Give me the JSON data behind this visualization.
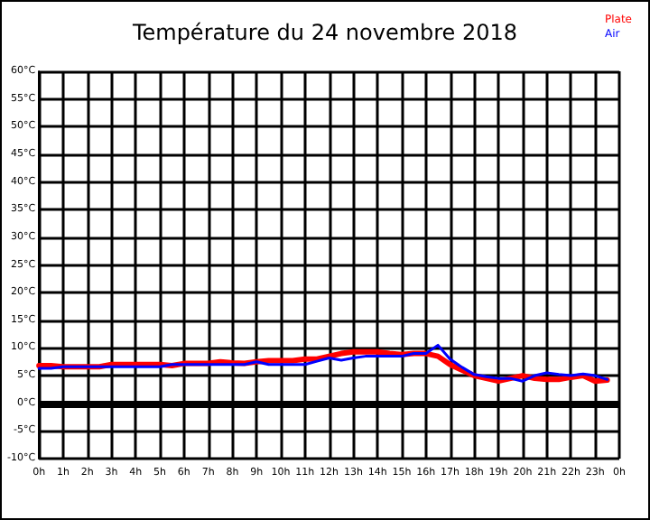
{
  "chart_data": {
    "type": "line",
    "title": "Température du 24 novembre 2018",
    "x": [
      "2018-11-24T00:00",
      "2018-11-24T00:30",
      "2018-11-24T01:00",
      "2018-11-24T01:30",
      "2018-11-24T02:00",
      "2018-11-24T02:30",
      "2018-11-24T03:00",
      "2018-11-24T03:30",
      "2018-11-24T04:00",
      "2018-11-24T04:30",
      "2018-11-24T05:00",
      "2018-11-24T05:30",
      "2018-11-24T06:00",
      "2018-11-24T06:30",
      "2018-11-24T07:00",
      "2018-11-24T07:30",
      "2018-11-24T08:00",
      "2018-11-24T08:30",
      "2018-11-24T09:00",
      "2018-11-24T09:30",
      "2018-11-24T10:00",
      "2018-11-24T10:30",
      "2018-11-24T11:00",
      "2018-11-24T11:30",
      "2018-11-24T12:00",
      "2018-11-24T12:30",
      "2018-11-24T13:00",
      "2018-11-24T13:30",
      "2018-11-24T14:00",
      "2018-11-24T14:30",
      "2018-11-24T15:00",
      "2018-11-24T15:30",
      "2018-11-24T16:00",
      "2018-11-24T16:30",
      "2018-11-24T17:00",
      "2018-11-24T17:30",
      "2018-11-24T18:00",
      "2018-11-24T18:30",
      "2018-11-24T19:00",
      "2018-11-24T19:30",
      "2018-11-24T20:00",
      "2018-11-24T20:30",
      "2018-11-24T21:00",
      "2018-11-24T21:30",
      "2018-11-24T22:00",
      "2018-11-24T22:30",
      "2018-11-24T23:00",
      "2018-11-24T23:30"
    ],
    "series": [
      {
        "name": "Plate",
        "color": "#ff0000",
        "values": [
          6.8,
          6.8,
          6.6,
          6.6,
          6.6,
          6.6,
          7.0,
          7.0,
          7.0,
          7.0,
          7.0,
          6.8,
          7.2,
          7.2,
          7.2,
          7.5,
          7.3,
          7.2,
          7.5,
          7.7,
          7.7,
          7.7,
          8.0,
          8.0,
          8.5,
          9.0,
          9.3,
          9.3,
          9.3,
          9.0,
          8.8,
          9.0,
          9.0,
          8.5,
          7.0,
          6.0,
          5.0,
          4.5,
          4.0,
          4.5,
          5.0,
          4.5,
          4.3,
          4.3,
          4.7,
          5.0,
          4.0,
          4.2
        ]
      },
      {
        "name": "Air",
        "color": "#0000ff",
        "values": [
          6.3,
          6.3,
          6.6,
          6.6,
          6.6,
          6.6,
          6.6,
          6.6,
          6.6,
          6.6,
          6.6,
          7.0,
          7.0,
          7.0,
          7.0,
          7.0,
          7.0,
          7.0,
          7.5,
          7.0,
          7.0,
          7.0,
          7.0,
          7.6,
          8.2,
          7.8,
          8.2,
          8.5,
          8.5,
          8.5,
          8.5,
          9.0,
          9.0,
          10.5,
          8.0,
          6.5,
          5.2,
          4.8,
          4.5,
          4.5,
          4.0,
          5.0,
          5.5,
          5.2,
          5.0,
          5.3,
          5.0,
          4.3
        ]
      }
    ],
    "xlim": [
      "2018-11-24T00:00",
      "2018-11-25T00:00"
    ],
    "xticks": [
      {
        "value": "2018-11-24T00:00",
        "label": "0h"
      },
      {
        "value": "2018-11-24T01:00",
        "label": "1h"
      },
      {
        "value": "2018-11-24T02:00",
        "label": "2h"
      },
      {
        "value": "2018-11-24T03:00",
        "label": "3h"
      },
      {
        "value": "2018-11-24T04:00",
        "label": "4h"
      },
      {
        "value": "2018-11-24T05:00",
        "label": "5h"
      },
      {
        "value": "2018-11-24T06:00",
        "label": "6h"
      },
      {
        "value": "2018-11-24T07:00",
        "label": "7h"
      },
      {
        "value": "2018-11-24T08:00",
        "label": "8h"
      },
      {
        "value": "2018-11-24T09:00",
        "label": "9h"
      },
      {
        "value": "2018-11-24T10:00",
        "label": "10h"
      },
      {
        "value": "2018-11-24T11:00",
        "label": "11h"
      },
      {
        "value": "2018-11-24T12:00",
        "label": "12h"
      },
      {
        "value": "2018-11-24T13:00",
        "label": "13h"
      },
      {
        "value": "2018-11-24T14:00",
        "label": "14h"
      },
      {
        "value": "2018-11-24T15:00",
        "label": "15h"
      },
      {
        "value": "2018-11-24T16:00",
        "label": "16h"
      },
      {
        "value": "2018-11-24T17:00",
        "label": "17h"
      },
      {
        "value": "2018-11-24T18:00",
        "label": "18h"
      },
      {
        "value": "2018-11-24T19:00",
        "label": "19h"
      },
      {
        "value": "2018-11-24T20:00",
        "label": "20h"
      },
      {
        "value": "2018-11-24T21:00",
        "label": "21h"
      },
      {
        "value": "2018-11-24T22:00",
        "label": "22h"
      },
      {
        "value": "2018-11-24T23:00",
        "label": "23h"
      },
      {
        "value": "2018-11-25T00:00",
        "label": "0h"
      }
    ],
    "ylim": [
      -10,
      60
    ],
    "yticks": [
      {
        "value": -10,
        "label": "-10°C"
      },
      {
        "value": -5,
        "label": "-5°C"
      },
      {
        "value": 0,
        "label": "0°C"
      },
      {
        "value": 5,
        "label": "5°C"
      },
      {
        "value": 10,
        "label": "10°C"
      },
      {
        "value": 15,
        "label": "15°C"
      },
      {
        "value": 20,
        "label": "20°C"
      },
      {
        "value": 25,
        "label": "25°C"
      },
      {
        "value": 30,
        "label": "30°C"
      },
      {
        "value": 35,
        "label": "35°C"
      },
      {
        "value": 40,
        "label": "40°C"
      },
      {
        "value": 45,
        "label": "45°C"
      },
      {
        "value": 50,
        "label": "50°C"
      },
      {
        "value": 55,
        "label": "55°C"
      },
      {
        "value": 60,
        "label": "60°C"
      }
    ],
    "ref_lines": [
      {
        "axis": "y",
        "value": 0,
        "color": "#000000"
      }
    ],
    "grid": true,
    "legend": "top right",
    "marker": "none",
    "line_style": "solid"
  }
}
